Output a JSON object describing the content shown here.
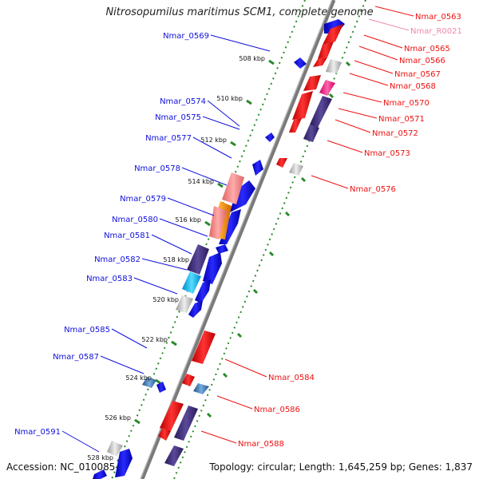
{
  "title": "Nitrosopumilus maritimus SCM1, complete genome",
  "footer": {
    "accession": "Accession: NC_010085",
    "summary": "Topology: circular; Length: 1,645,259 bp; Genes: 1,837"
  },
  "scale_labels": [
    "508 kbp",
    "510 kbp",
    "512 kbp",
    "514 kbp",
    "516 kbp",
    "518 kbp",
    "520 kbp",
    "522 kbp",
    "524 kbp",
    "526 kbp",
    "528 kbp"
  ],
  "left_labels": [
    "Nmar_0569",
    "Nmar_0574",
    "Nmar_0575",
    "Nmar_0577",
    "Nmar_0578",
    "Nmar_0579",
    "Nmar_0580",
    "Nmar_0581",
    "Nmar_0582",
    "Nmar_0583",
    "Nmar_0585",
    "Nmar_0587",
    "Nmar_0591"
  ],
  "right_labels": [
    "Nmar_0563",
    "Nmar_R0021",
    "Nmar_0565",
    "Nmar_0566",
    "Nmar_0567",
    "Nmar_0568",
    "Nmar_0570",
    "Nmar_0571",
    "Nmar_0572",
    "Nmar_0573",
    "Nmar_0576",
    "Nmar_0584",
    "Nmar_0586",
    "Nmar_0588"
  ],
  "colors": {
    "forward": "#1010dd",
    "reverse": "#ee1111",
    "rna": "#ee88aa",
    "backbone": "#888888",
    "dots": "#228822",
    "cog_purple": "#44307a",
    "cog_cyan": "#11bbee",
    "cog_orange": "#ee8800",
    "cog_pink": "#ee7777",
    "cog_magenta": "#ee2277",
    "cog_grey": "#aaaaaa",
    "cog_steel": "#3366aa"
  }
}
